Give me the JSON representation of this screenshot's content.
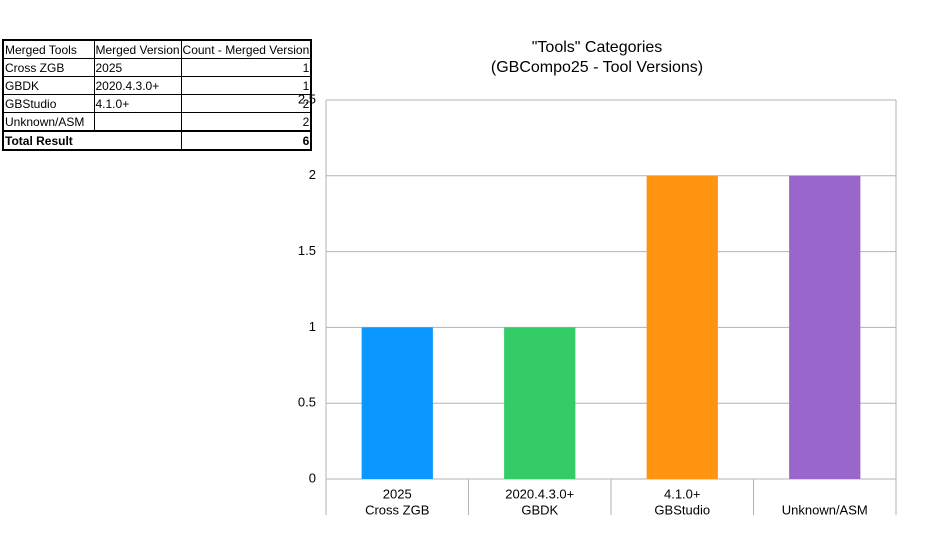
{
  "table": {
    "header": [
      "Merged Tools",
      "Merged Version",
      "Count - Merged Version"
    ],
    "rows": [
      [
        "Cross ZGB",
        "2025",
        1
      ],
      [
        "GBDK",
        "2020.4.3.0+",
        1
      ],
      [
        "GBStudio",
        "4.1.0+",
        2
      ],
      [
        "Unknown/ASM",
        null,
        2
      ]
    ],
    "total": [
      "Total Result",
      6
    ]
  },
  "chart_data": {
    "type": "bar",
    "title": "\"Tools\" Categories",
    "subtitle": "(GBCompo25 - Tool Versions)",
    "categories": [
      [
        "2025",
        "Cross ZGB"
      ],
      [
        "2020.4.3.0+",
        "GBDK"
      ],
      [
        "4.1.0+",
        "GBStudio"
      ],
      [
        null,
        "Unknown/ASM"
      ]
    ],
    "values": [
      1,
      1,
      2,
      2
    ],
    "colors": [
      "#0a97ff",
      "#33cc66",
      "#ff9410",
      "#9966cc"
    ],
    "ylim": [
      0,
      2.5
    ],
    "yticks": [
      0,
      0.5,
      1,
      1.5,
      2,
      2.5
    ],
    "grid": true
  }
}
